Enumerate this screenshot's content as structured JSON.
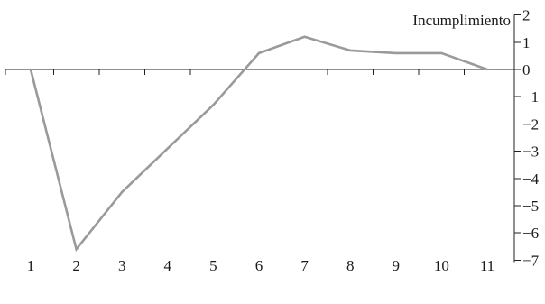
{
  "chart_data": {
    "type": "line",
    "title": "",
    "xlabel": "",
    "ylabel": "",
    "x": [
      1,
      2,
      3,
      4,
      5,
      6,
      7,
      8,
      9,
      10,
      11
    ],
    "x_ticks": [
      "1",
      "2",
      "3",
      "4",
      "5",
      "6",
      "7",
      "8",
      "9",
      "10",
      "11"
    ],
    "y_ticks": [
      "2",
      "1",
      "0",
      "-1",
      "-2",
      "-3",
      "-4",
      "-5",
      "-6",
      "-7"
    ],
    "ylim": [
      -7,
      2
    ],
    "y_axis_side": "right",
    "grid": false,
    "series": [
      {
        "name": "Incumplimiento",
        "color": "#9a9a9a",
        "values": [
          0,
          -6.6,
          -4.5,
          -2.9,
          -1.3,
          0.6,
          1.2,
          0.7,
          0.6,
          0.6,
          0
        ]
      }
    ]
  }
}
